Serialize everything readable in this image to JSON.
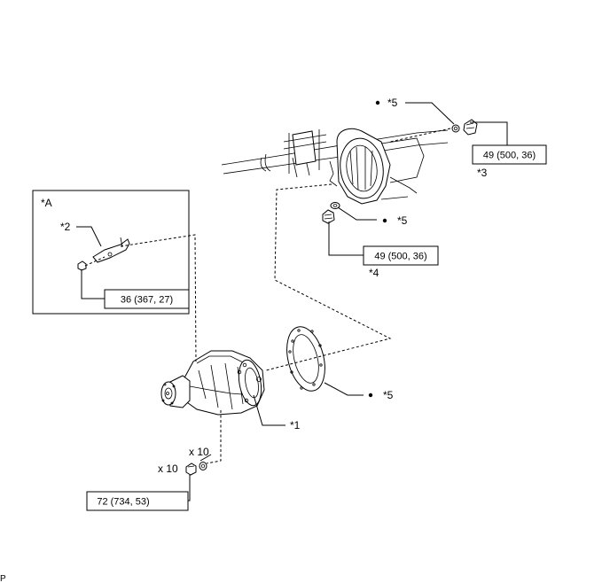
{
  "inset": {
    "label": "*A"
  },
  "callouts": {
    "c1": "*1",
    "c2": "*2",
    "c3": "*3",
    "c4": "*4",
    "c5_top": "*5",
    "c5_mid": "*5",
    "c5_bottom": "*5"
  },
  "quantities": {
    "nut_qty": "x 10",
    "washer_qty": "x 10"
  },
  "torque": {
    "inset_bolt": "36 (367, 27)",
    "top_plug": "49 (500, 36)",
    "mid_plug": "49 (500, 36)",
    "mounting_nut": "72 (734, 53)"
  },
  "footer": {
    "code": "P"
  }
}
